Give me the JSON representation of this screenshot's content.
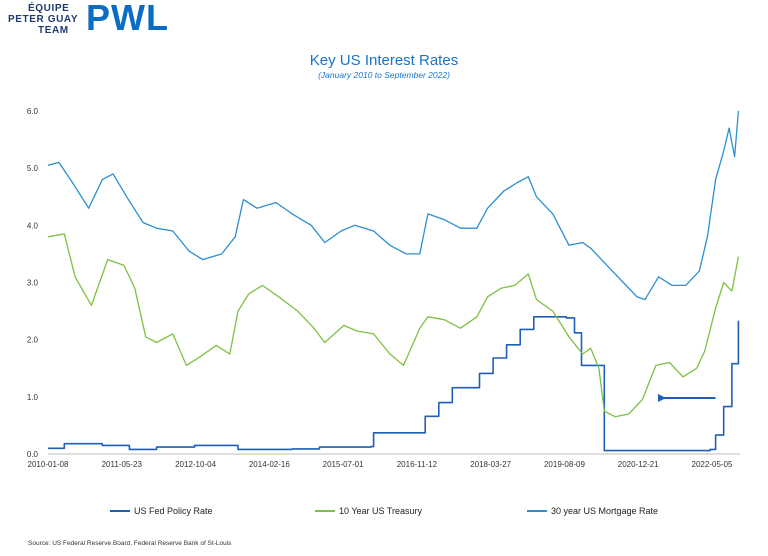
{
  "logo": {
    "line1": "ÉQUIPE",
    "line2": "PETER GUAY",
    "line3": "TEAM",
    "brand": "PWL"
  },
  "source_note": "Source: US Federal Reserve Board, Federal Reserve Bank of St-Louis",
  "chart_data": {
    "type": "line",
    "title": "Key US Interest Rates",
    "subtitle": "(January 2010 to September 2022)",
    "xlabel": "",
    "ylabel": "",
    "x_tick_labels": [
      "2010-01-08",
      "2011-05-23",
      "2012-10-04",
      "2014-02-16",
      "2015-07-01",
      "2016-11-12",
      "2018-03-27",
      "2019-08-09",
      "2020-12-21",
      "2022-05-05"
    ],
    "x_range": [
      2010.0,
      2022.75
    ],
    "ylim": [
      0,
      6
    ],
    "y_tick_labels": [
      "0.0",
      "1.0",
      "2.0",
      "3.0",
      "4.0",
      "5.0",
      "6.0"
    ],
    "grid": false,
    "legend_position": "bottom",
    "annotation": "arrow pointing to 10 Year US Treasury low in 2021",
    "series": [
      {
        "name": "US Fed Policy Rate",
        "color": "#1f5fb8",
        "style": "step",
        "x": [
          2010.0,
          2010.3,
          2011.0,
          2011.5,
          2012.0,
          2012.7,
          2013.5,
          2014.5,
          2015.0,
          2015.95,
          2016.0,
          2016.95,
          2017.2,
          2017.45,
          2017.95,
          2018.2,
          2018.45,
          2018.7,
          2018.95,
          2019.55,
          2019.7,
          2019.83,
          2020.17,
          2020.25,
          2022.2,
          2022.3,
          2022.45,
          2022.6,
          2022.72
        ],
        "values": [
          0.1,
          0.18,
          0.15,
          0.08,
          0.12,
          0.15,
          0.08,
          0.09,
          0.12,
          0.13,
          0.37,
          0.66,
          0.9,
          1.16,
          1.41,
          1.68,
          1.91,
          2.18,
          2.4,
          2.38,
          2.12,
          1.55,
          1.55,
          0.06,
          0.08,
          0.33,
          0.83,
          1.58,
          2.33
        ]
      },
      {
        "name": "10 Year US Treasury",
        "color": "#7dc142",
        "style": "line",
        "x": [
          2010.0,
          2010.3,
          2010.5,
          2010.8,
          2011.1,
          2011.4,
          2011.6,
          2011.8,
          2012.0,
          2012.3,
          2012.55,
          2012.8,
          2013.1,
          2013.35,
          2013.5,
          2013.7,
          2013.95,
          2014.25,
          2014.6,
          2014.9,
          2015.1,
          2015.45,
          2015.7,
          2016.0,
          2016.3,
          2016.55,
          2016.85,
          2017.0,
          2017.3,
          2017.6,
          2017.9,
          2018.1,
          2018.35,
          2018.6,
          2018.85,
          2019.0,
          2019.3,
          2019.6,
          2019.85,
          2020.0,
          2020.15,
          2020.25,
          2020.45,
          2020.7,
          2020.95,
          2021.2,
          2021.45,
          2021.7,
          2021.95,
          2022.1,
          2022.3,
          2022.45,
          2022.6,
          2022.72
        ],
        "values": [
          3.8,
          3.85,
          3.1,
          2.6,
          3.4,
          3.3,
          2.9,
          2.05,
          1.95,
          2.1,
          1.55,
          1.7,
          1.9,
          1.75,
          2.5,
          2.8,
          2.95,
          2.75,
          2.5,
          2.2,
          1.95,
          2.25,
          2.15,
          2.1,
          1.75,
          1.55,
          2.2,
          2.4,
          2.35,
          2.2,
          2.4,
          2.75,
          2.9,
          2.95,
          3.15,
          2.7,
          2.5,
          2.05,
          1.75,
          1.85,
          1.5,
          0.75,
          0.65,
          0.7,
          0.95,
          1.55,
          1.6,
          1.35,
          1.5,
          1.8,
          2.55,
          3.0,
          2.85,
          3.45
        ]
      },
      {
        "name": "30 year US Mortgage Rate",
        "color": "#2b8fd0",
        "style": "line",
        "x": [
          2010.0,
          2010.2,
          2010.45,
          2010.75,
          2011.0,
          2011.2,
          2011.45,
          2011.75,
          2012.0,
          2012.3,
          2012.6,
          2012.85,
          2013.2,
          2013.45,
          2013.6,
          2013.85,
          2014.2,
          2014.5,
          2014.85,
          2015.1,
          2015.4,
          2015.65,
          2016.0,
          2016.3,
          2016.6,
          2016.85,
          2017.0,
          2017.3,
          2017.6,
          2017.9,
          2018.1,
          2018.4,
          2018.65,
          2018.85,
          2019.0,
          2019.3,
          2019.6,
          2019.85,
          2020.0,
          2020.3,
          2020.6,
          2020.85,
          2021.0,
          2021.25,
          2021.5,
          2021.75,
          2022.0,
          2022.15,
          2022.3,
          2022.45,
          2022.55,
          2022.65,
          2022.72
        ],
        "values": [
          5.05,
          5.1,
          4.75,
          4.3,
          4.8,
          4.9,
          4.5,
          4.05,
          3.95,
          3.9,
          3.55,
          3.4,
          3.5,
          3.8,
          4.45,
          4.3,
          4.4,
          4.2,
          4.0,
          3.7,
          3.9,
          4.0,
          3.9,
          3.65,
          3.5,
          3.5,
          4.2,
          4.1,
          3.95,
          3.95,
          4.3,
          4.6,
          4.75,
          4.85,
          4.5,
          4.2,
          3.65,
          3.7,
          3.6,
          3.3,
          3.0,
          2.75,
          2.7,
          3.1,
          2.95,
          2.95,
          3.2,
          3.8,
          4.8,
          5.3,
          5.7,
          5.2,
          6.0
        ]
      }
    ]
  }
}
